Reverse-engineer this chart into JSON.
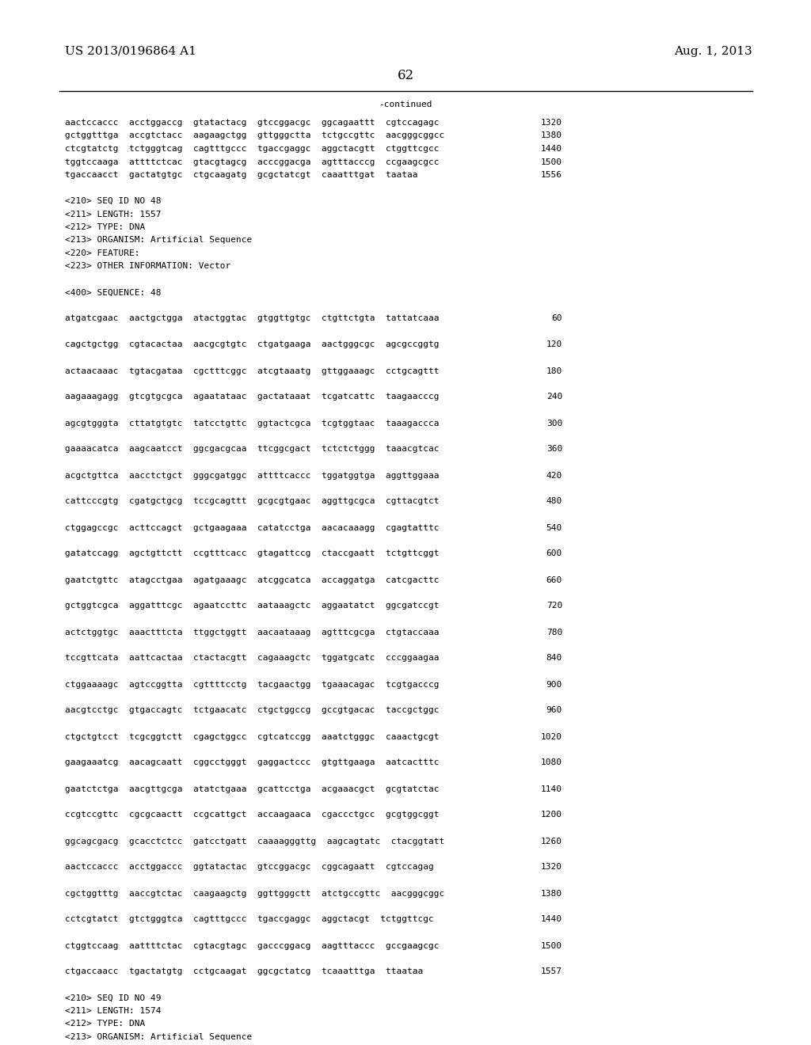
{
  "background_color": "#ffffff",
  "page_header_left": "US 2013/0196864 A1",
  "page_header_right": "Aug. 1, 2013",
  "page_number": "62",
  "continued_label": "-continued",
  "font_size_header": 11,
  "font_size_page_num": 12,
  "font_size_body": 8.0,
  "content_lines": [
    {
      "text": "aactccaccc  acctggaccg  gtatactacg  gtccggacgc  ggcagaattt  cgtccagagc",
      "num": "1320"
    },
    {
      "text": "gctggtttga  accgtctacc  aagaagctgg  gttgggctta  tctgccgttc  aacgggcggcc",
      "num": "1380"
    },
    {
      "text": "ctcgtatctg  tctgggtcag  cagtttgccc  tgaccgaggc  aggctacgtt  ctggttcgcc",
      "num": "1440"
    },
    {
      "text": "tggtccaaga  attttctcac  gtacgtagcg  acccggacga  agtttacccg  ccgaagcgcc",
      "num": "1500"
    },
    {
      "text": "tgaccaacct  gactatgtgc  ctgcaagatg  gcgctatcgt  caaatttgat  taataa",
      "num": "1556"
    },
    {
      "text": "",
      "num": ""
    },
    {
      "text": "<210> SEQ ID NO 48",
      "num": ""
    },
    {
      "text": "<211> LENGTH: 1557",
      "num": ""
    },
    {
      "text": "<212> TYPE: DNA",
      "num": ""
    },
    {
      "text": "<213> ORGANISM: Artificial Sequence",
      "num": ""
    },
    {
      "text": "<220> FEATURE:",
      "num": ""
    },
    {
      "text": "<223> OTHER INFORMATION: Vector",
      "num": ""
    },
    {
      "text": "",
      "num": ""
    },
    {
      "text": "<400> SEQUENCE: 48",
      "num": ""
    },
    {
      "text": "",
      "num": ""
    },
    {
      "text": "atgatcgaac  aactgctgga  atactggtac  gtggttgtgc  ctgttctgta  tattatcaaa",
      "num": "60"
    },
    {
      "text": "",
      "num": ""
    },
    {
      "text": "cagctgctgg  cgtacactaa  aacgcgtgtc  ctgatgaaga  aactgggcgc  agcgccggtg",
      "num": "120"
    },
    {
      "text": "",
      "num": ""
    },
    {
      "text": "actaacaaac  tgtacgataa  cgctttcggc  atcgtaaatg  gttggaaagc  cctgcagttt",
      "num": "180"
    },
    {
      "text": "",
      "num": ""
    },
    {
      "text": "aagaaagagg  gtcgtgcgca  agaatataac  gactataaat  tcgatcattc  taagaacccg",
      "num": "240"
    },
    {
      "text": "",
      "num": ""
    },
    {
      "text": "agcgtgggta  cttatgtgtc  tatcctgttc  ggtactcgca  tcgtggtaac  taaagaccca",
      "num": "300"
    },
    {
      "text": "",
      "num": ""
    },
    {
      "text": "gaaaacatca  aagcaatcct  ggcgacgcaa  ttcggcgact  tctctctggg  taaacgtcac",
      "num": "360"
    },
    {
      "text": "",
      "num": ""
    },
    {
      "text": "acgctgttca  aacctctgct  gggcgatggc  attttcaccc  tggatggtga  aggttggaaa",
      "num": "420"
    },
    {
      "text": "",
      "num": ""
    },
    {
      "text": "cattcccgtg  cgatgctgcg  tccgcagttt  gcgcgtgaac  aggttgcgca  cgttacgtct",
      "num": "480"
    },
    {
      "text": "",
      "num": ""
    },
    {
      "text": "ctggagccgc  acttccagct  gctgaagaaa  catatcctga  aacacaaagg  cgagtatttc",
      "num": "540"
    },
    {
      "text": "",
      "num": ""
    },
    {
      "text": "gatatccagg  agctgttctt  ccgtttcacc  gtagattccg  ctaccgaatt  tctgttcggt",
      "num": "600"
    },
    {
      "text": "",
      "num": ""
    },
    {
      "text": "gaatctgttc  atagcctgaa  agatgaaagc  atcggcatca  accaggatga  catcgacttc",
      "num": "660"
    },
    {
      "text": "",
      "num": ""
    },
    {
      "text": "gctggtcgca  aggatttcgc  agaatccttc  aataaagctc  aggaatatct  ggcgatccgt",
      "num": "720"
    },
    {
      "text": "",
      "num": ""
    },
    {
      "text": "actctggtgc  aaactttcta  ttggctggtt  aacaataaag  agtttcgcga  ctgtaccaaa",
      "num": "780"
    },
    {
      "text": "",
      "num": ""
    },
    {
      "text": "tccgttcata  aattcactaa  ctactacgtt  cagaaagctc  tggatgcatc  cccggaagaa",
      "num": "840"
    },
    {
      "text": "",
      "num": ""
    },
    {
      "text": "ctggaaaagc  agtccggtta  cgttttcctg  tacgaactgg  tgaaacagac  tcgtgacccg",
      "num": "900"
    },
    {
      "text": "",
      "num": ""
    },
    {
      "text": "aacgtcctgc  gtgaccagtc  tctgaacatc  ctgctggccg  gccgtgacac  taccgctggc",
      "num": "960"
    },
    {
      "text": "",
      "num": ""
    },
    {
      "text": "ctgctgtcct  tcgcggtctt  cgagctggcc  cgtcatccgg  aaatctgggc  caaactgcgt",
      "num": "1020"
    },
    {
      "text": "",
      "num": ""
    },
    {
      "text": "gaagaaatcg  aacagcaatt  cggcctgggt  gaggactccc  gtgttgaaga  aatcactttc",
      "num": "1080"
    },
    {
      "text": "",
      "num": ""
    },
    {
      "text": "gaatctctga  aacgttgcga  atatctgaaa  gcattcctga  acgaaacgct  gcgtatctac",
      "num": "1140"
    },
    {
      "text": "",
      "num": ""
    },
    {
      "text": "ccgtccgttc  cgcgcaactt  ccgcattgct  accaagaaca  cgaccctgcc  gcgtggcggt",
      "num": "1200"
    },
    {
      "text": "",
      "num": ""
    },
    {
      "text": "ggcagcgacg  gcacctctcc  gatcctgatt  caaaagggttg  aagcagtatc  ctacggtatt",
      "num": "1260"
    },
    {
      "text": "",
      "num": ""
    },
    {
      "text": "aactccaccc  acctggaccc  ggtatactac  gtccggacgc  cggcagaatt  cgtccagag",
      "num": "1320"
    },
    {
      "text": "",
      "num": ""
    },
    {
      "text": "cgctggtttg  aaccgtctac  caagaagctg  ggttgggctt  atctgccgttc  aacgggcggc",
      "num": "1380"
    },
    {
      "text": "",
      "num": ""
    },
    {
      "text": "cctcgtatct  gtctgggtca  cagtttgccc  tgaccgaggc  aggctacgt  tctggttcgc",
      "num": "1440"
    },
    {
      "text": "",
      "num": ""
    },
    {
      "text": "ctggtccaag  aattttctac  cgtacgtagc  gacccggacg  aagtttaccc  gccgaagcgc",
      "num": "1500"
    },
    {
      "text": "",
      "num": ""
    },
    {
      "text": "ctgaccaacc  tgactatgtg  cctgcaagat  ggcgctatcg  tcaaatttga  ttaataa",
      "num": "1557"
    },
    {
      "text": "",
      "num": ""
    },
    {
      "text": "<210> SEQ ID NO 49",
      "num": ""
    },
    {
      "text": "<211> LENGTH: 1574",
      "num": ""
    },
    {
      "text": "<212> TYPE: DNA",
      "num": ""
    },
    {
      "text": "<213> ORGANISM: Artificial Sequence",
      "num": ""
    }
  ]
}
